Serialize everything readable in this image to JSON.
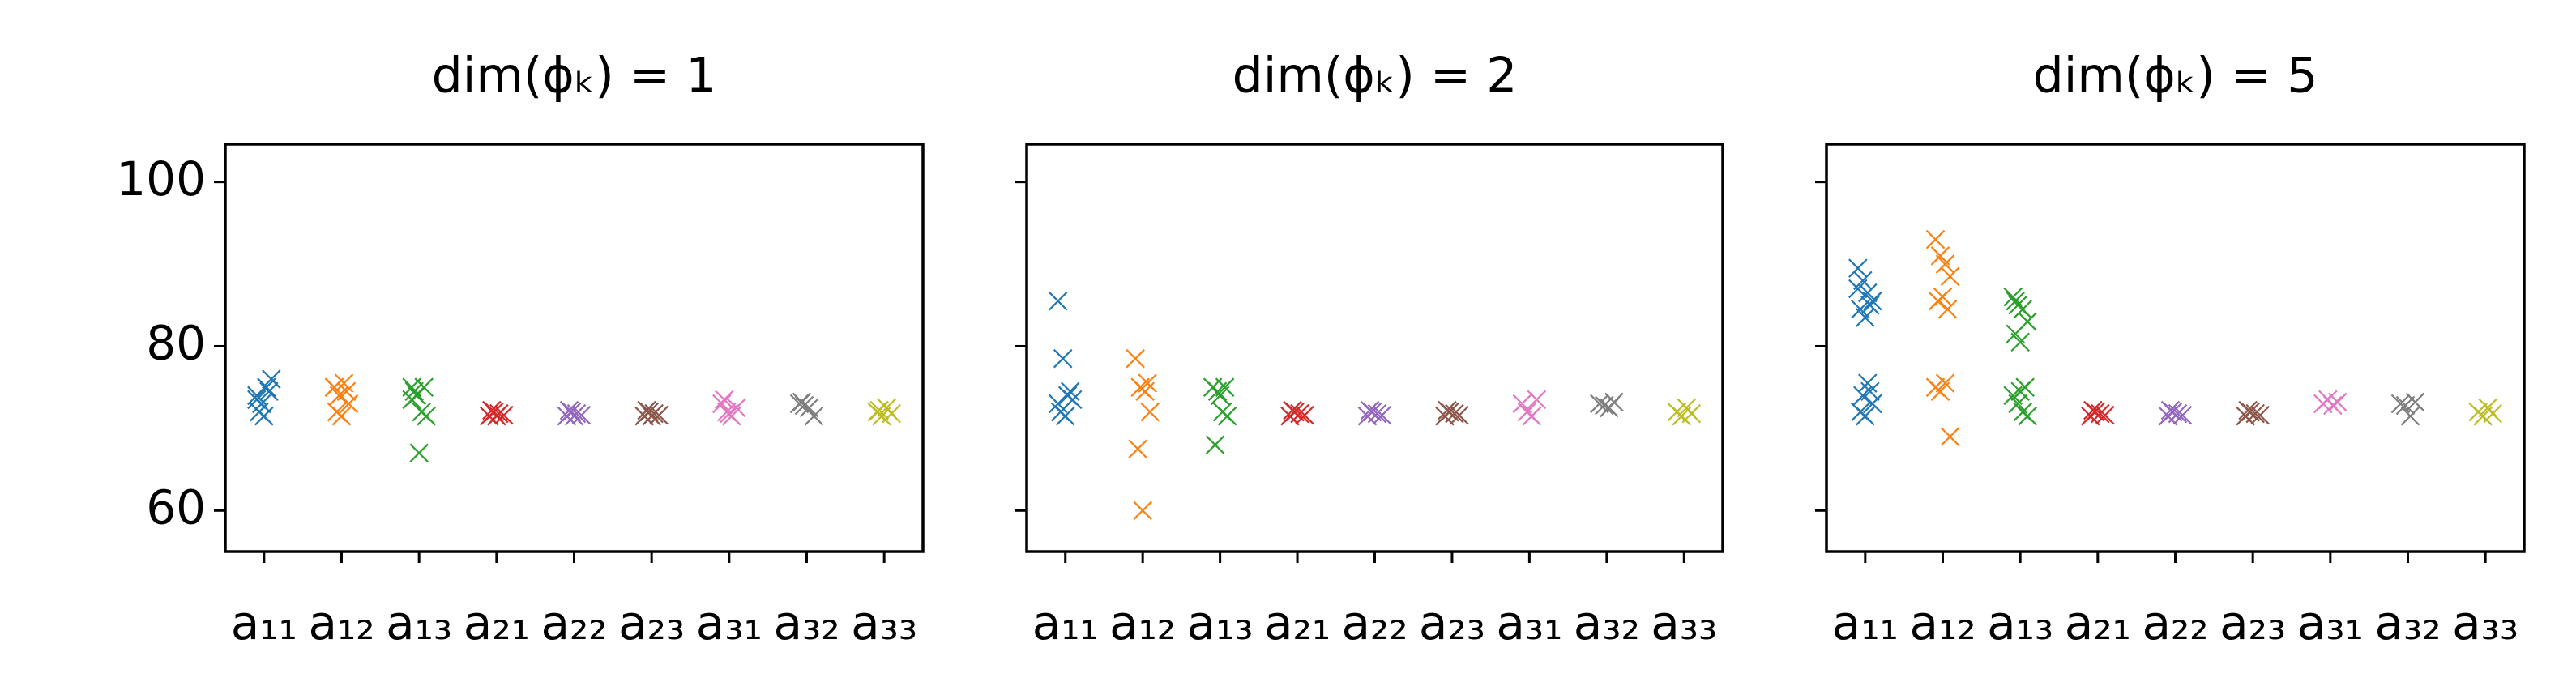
{
  "chart_data": [
    {
      "type": "scatter",
      "title": "dim(ϕₖ) = 1",
      "categories": [
        "a₁₁",
        "a₁₂",
        "a₁₃",
        "a₂₁",
        "a₂₂",
        "a₂₃",
        "a₃₁",
        "a₃₂",
        "a₃₃"
      ],
      "colors": [
        "#1f77b4",
        "#ff7f0e",
        "#2ca02c",
        "#d62728",
        "#9467bd",
        "#8c564b",
        "#e377c2",
        "#7f7f7f",
        "#bcbd22"
      ],
      "values": [
        [
          74,
          73,
          75,
          76,
          72,
          71.5,
          74.5,
          73.5
        ],
        [
          75,
          74,
          75.5,
          73,
          72,
          71.5,
          74.5,
          75
        ],
        [
          75,
          74,
          72,
          71.5,
          74.5,
          67,
          75,
          73.5
        ],
        [
          71.5,
          72,
          71.8,
          71.6,
          72.2,
          71.5
        ],
        [
          71.5,
          72,
          71.8,
          71.6,
          72.2,
          71.5
        ],
        [
          71.5,
          72,
          71.8,
          71.6,
          72.2,
          71.5
        ],
        [
          73,
          72,
          71.5,
          72.5,
          73.5,
          71.8
        ],
        [
          73,
          72.8,
          72.5,
          71.5,
          73.2
        ],
        [
          72,
          71.5,
          72.5,
          71.8,
          72.2
        ]
      ],
      "ylim": [
        55,
        104.6
      ],
      "yticks": [
        60,
        80,
        100
      ],
      "ytick_labels": true
    },
    {
      "type": "scatter",
      "title": "dim(ϕₖ) = 2",
      "categories": [
        "a₁₁",
        "a₁₂",
        "a₁₃",
        "a₂₁",
        "a₂₂",
        "a₂₃",
        "a₃₁",
        "a₃₂",
        "a₃₃"
      ],
      "colors": [
        "#1f77b4",
        "#ff7f0e",
        "#2ca02c",
        "#d62728",
        "#9467bd",
        "#8c564b",
        "#e377c2",
        "#7f7f7f",
        "#bcbd22"
      ],
      "values": [
        [
          85.5,
          78.5,
          74,
          73.5,
          72,
          71.5,
          74.5,
          73
        ],
        [
          78.5,
          75,
          74.5,
          72,
          67.5,
          60,
          75.5
        ],
        [
          75,
          74.5,
          72,
          71.5,
          68,
          74,
          75
        ],
        [
          71.5,
          72,
          71.8,
          71.6,
          72.2
        ],
        [
          71.5,
          72,
          71.8,
          71.6,
          72.2
        ],
        [
          71.5,
          72,
          71.8,
          71.6,
          72.2
        ],
        [
          73,
          72,
          71.5,
          73.5
        ],
        [
          73,
          72.8,
          72.5,
          73.2
        ],
        [
          72,
          71.5,
          72.5,
          71.8
        ]
      ],
      "ylim": [
        55,
        104.6
      ],
      "yticks": [
        60,
        80,
        100
      ],
      "ytick_labels": false
    },
    {
      "type": "scatter",
      "title": "dim(ϕₖ) = 5",
      "categories": [
        "a₁₁",
        "a₁₂",
        "a₁₃",
        "a₂₁",
        "a₂₂",
        "a₂₃",
        "a₃₁",
        "a₃₂",
        "a₃₃"
      ],
      "colors": [
        "#1f77b4",
        "#ff7f0e",
        "#2ca02c",
        "#d62728",
        "#9467bd",
        "#8c564b",
        "#e377c2",
        "#7f7f7f",
        "#bcbd22"
      ],
      "values": [
        [
          89.5,
          88,
          86.5,
          85.5,
          84.5,
          83.5,
          85,
          87,
          74,
          75.5,
          73,
          72,
          71.5,
          74.5
        ],
        [
          93,
          91,
          90,
          88.5,
          85.5,
          86,
          84.5,
          75,
          74.5,
          75.5,
          69
        ],
        [
          86,
          85,
          84.5,
          83,
          81.5,
          80.5,
          75,
          74,
          73,
          72,
          71.5,
          85.5,
          74.5
        ],
        [
          71.5,
          72,
          71.8,
          71.6,
          72.2
        ],
        [
          71.5,
          72,
          71.8,
          71.6,
          72.2
        ],
        [
          71.5,
          72,
          71.8,
          71.6,
          72.2
        ],
        [
          73,
          73.5,
          72.8,
          73.2
        ],
        [
          73,
          72.8,
          71.5,
          73.2
        ],
        [
          72,
          71.5,
          72.5,
          71.8
        ]
      ],
      "ylim": [
        55,
        104.6
      ],
      "yticks": [
        60,
        80,
        100
      ],
      "ytick_labels": false
    }
  ]
}
